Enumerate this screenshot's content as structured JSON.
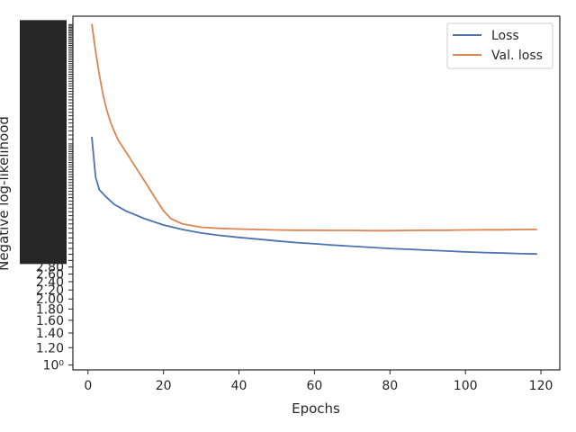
{
  "chart_data": {
    "type": "line",
    "xlabel": "Epochs",
    "ylabel": "Negative log-likelihood",
    "xlim": [
      -4,
      125
    ],
    "x_ticks": [
      "0",
      "20",
      "40",
      "60",
      "80",
      "100",
      "120"
    ],
    "y_scale": "log",
    "y_ticks_visible": [
      "10⁰",
      "1.20",
      "1.40",
      "1.60",
      "1.80",
      "2.00",
      "2.20",
      "2.40",
      "2.60",
      "2.80"
    ],
    "grid": false,
    "legend": "top-right",
    "colors": {
      "Loss": "#4c72b0",
      "Val. loss": "#dd8452"
    },
    "series": [
      {
        "name": "Loss",
        "x": [
          1,
          2,
          3,
          5,
          7,
          10,
          15,
          20,
          25,
          30,
          35,
          40,
          45,
          50,
          55,
          60,
          65,
          70,
          75,
          80,
          85,
          90,
          95,
          100,
          105,
          110,
          115,
          119
        ],
        "y": [
          11.0,
          7.2,
          6.3,
          5.8,
          5.4,
          5.05,
          4.65,
          4.35,
          4.15,
          4.0,
          3.9,
          3.82,
          3.75,
          3.68,
          3.62,
          3.57,
          3.52,
          3.48,
          3.44,
          3.4,
          3.37,
          3.34,
          3.31,
          3.28,
          3.26,
          3.24,
          3.22,
          3.21
        ]
      },
      {
        "name": "Val. loss",
        "x": [
          1,
          2,
          3,
          4,
          5,
          6,
          7,
          8,
          10,
          12,
          15,
          18,
          20,
          22,
          25,
          30,
          35,
          40,
          45,
          50,
          55,
          60,
          65,
          70,
          75,
          80,
          85,
          90,
          95,
          100,
          105,
          110,
          115,
          119
        ],
        "y": [
          36.0,
          27.0,
          21.0,
          17.0,
          14.5,
          12.8,
          11.6,
          10.6,
          9.4,
          8.3,
          6.9,
          5.7,
          5.05,
          4.65,
          4.4,
          4.25,
          4.2,
          4.17,
          4.15,
          4.13,
          4.12,
          4.12,
          4.11,
          4.11,
          4.1,
          4.1,
          4.11,
          4.12,
          4.12,
          4.13,
          4.14,
          4.14,
          4.15,
          4.15
        ]
      }
    ]
  }
}
